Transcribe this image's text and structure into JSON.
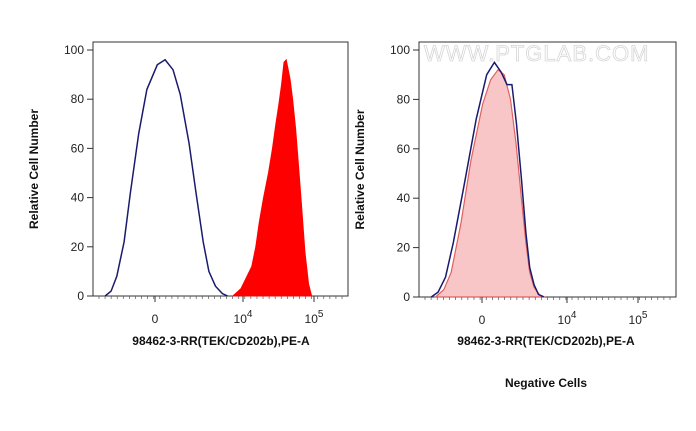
{
  "watermark": "WWW.PTGLAB.COM",
  "caption": "Negative Cells",
  "colors": {
    "outline": "#1a1a6e",
    "stained_fill": "#ff0000",
    "negative_fill": "#f8c6c6",
    "negative_line": "#e06060"
  },
  "chart_data": [
    {
      "type": "area",
      "ylabel": "Relative Cell Number",
      "xlabel": "98462-3-RR(TEK/CD202b),PE-A",
      "ylim": [
        0,
        100
      ],
      "y_ticks": [
        "0",
        "20",
        "40",
        "60",
        "80",
        "100"
      ],
      "x_ticks": [
        {
          "base": "0",
          "exp": ""
        },
        {
          "base": "10",
          "exp": "4"
        },
        {
          "base": "10",
          "exp": "5"
        }
      ],
      "x_scale": "biexponential",
      "series": [
        {
          "style": "outline",
          "x": [
            -1800,
            -1400,
            -1100,
            -800,
            -600,
            -400,
            -250,
            -100,
            0,
            100,
            200,
            350,
            500,
            700,
            900,
            1200,
            1600,
            2000
          ],
          "values": [
            0,
            2,
            8,
            22,
            42,
            66,
            84,
            94,
            96,
            92,
            82,
            62,
            42,
            22,
            10,
            4,
            1,
            0
          ]
        },
        {
          "style": "filled",
          "x": [
            2500,
            3500,
            4500,
            5500,
            6500,
            7500,
            9000,
            11000,
            13000,
            15000,
            17000,
            19000,
            21000,
            23000,
            25000,
            27000,
            30000,
            34000,
            38000,
            43000,
            50000,
            58000,
            66000
          ],
          "values": [
            0,
            3,
            8,
            12,
            20,
            30,
            40,
            50,
            60,
            70,
            78,
            86,
            95,
            96,
            92,
            88,
            80,
            68,
            54,
            38,
            18,
            5,
            0
          ]
        }
      ]
    },
    {
      "type": "area",
      "ylabel": "Relative Cell Number",
      "xlabel": "98462-3-RR(TEK/CD202b),PE-A",
      "ylim": [
        0,
        100
      ],
      "y_ticks": [
        "0",
        "20",
        "40",
        "60",
        "80",
        "100"
      ],
      "x_ticks": [
        {
          "base": "0",
          "exp": ""
        },
        {
          "base": "10",
          "exp": "4"
        },
        {
          "base": "10",
          "exp": "5"
        }
      ],
      "x_scale": "biexponential",
      "series": [
        {
          "style": "negative-filled",
          "x": [
            -1000,
            -700,
            -500,
            -300,
            -150,
            0,
            100,
            200,
            300,
            420,
            550,
            700,
            850,
            1000,
            1200,
            1500,
            1900
          ],
          "values": [
            0,
            3,
            10,
            30,
            55,
            78,
            88,
            92,
            90,
            80,
            62,
            40,
            22,
            10,
            4,
            1,
            0
          ]
        },
        {
          "style": "outline",
          "x": [
            -1200,
            -900,
            -650,
            -450,
            -250,
            -80,
            50,
            150,
            250,
            350,
            450,
            560,
            700,
            850,
            1000,
            1200,
            1450,
            1800
          ],
          "values": [
            0,
            2,
            8,
            22,
            45,
            72,
            90,
            95,
            91,
            86,
            86,
            70,
            48,
            26,
            12,
            5,
            1,
            0
          ]
        }
      ]
    }
  ]
}
